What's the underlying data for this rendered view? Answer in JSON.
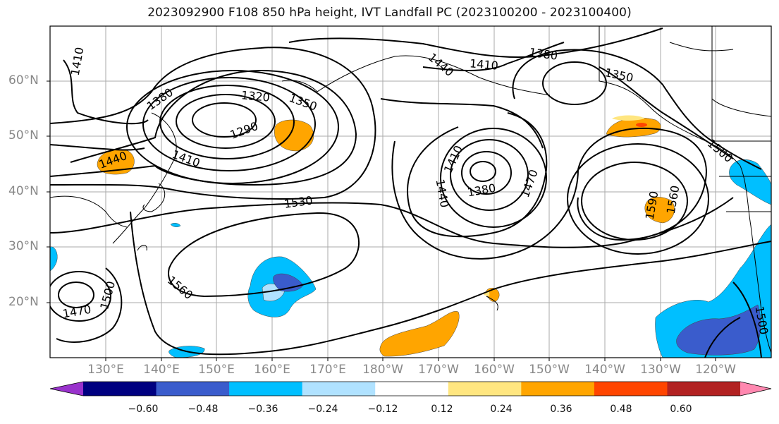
{
  "title": "2023092900 F108 850 hPa height, IVT Landfall PC (2023100200 - 2023100400)",
  "lat_labels": [
    "60°N",
    "50°N",
    "40°N",
    "30°N",
    "20°N"
  ],
  "lon_labels": [
    "130°E",
    "140°E",
    "150°E",
    "160°E",
    "170°E",
    "180°W",
    "170°W",
    "160°W",
    "150°W",
    "140°W",
    "130°W",
    "120°W"
  ],
  "contour_labels": [
    "1410",
    "1380",
    "1440",
    "1410",
    "1350",
    "1320",
    "1350",
    "1380",
    "1290",
    "1410",
    "1440",
    "1410",
    "1440",
    "1380",
    "1470",
    "1500",
    "1530",
    "1590",
    "1560",
    "1560",
    "1500",
    "1470",
    "1500"
  ],
  "colorbar": {
    "colors": [
      "#9932cc",
      "#000080",
      "#3a5ccc",
      "#00bfff",
      "#b0e2ff",
      "#ffffff",
      "#ffe680",
      "#ffa500",
      "#ff4500",
      "#b22222",
      "#ff88b0"
    ],
    "tick_labels": [
      "−0.60",
      "−0.48",
      "−0.36",
      "−0.24",
      "−0.12",
      "0.12",
      "0.24",
      "0.36",
      "0.48",
      "0.60"
    ]
  }
}
